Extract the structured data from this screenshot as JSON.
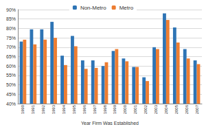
{
  "chart_data": {
    "type": "bar",
    "x_label": "Year Firm Was Established",
    "categories": [
      "1990",
      "1991",
      "1992",
      "1993",
      "1994",
      "1995",
      "1996",
      "1997",
      "1998",
      "1999",
      "2000",
      "2001",
      "2002",
      "2003",
      "2004",
      "2005",
      "2006",
      "2007"
    ],
    "series": [
      {
        "name": "Non-Metro",
        "color": "#2e74b5",
        "values": [
          73,
          79.5,
          79.5,
          83.5,
          65.5,
          76,
          63,
          63,
          60,
          68,
          64,
          59.5,
          54,
          70,
          88,
          80.5,
          69,
          63
        ]
      },
      {
        "name": "Metro",
        "color": "#ed7d31",
        "values": [
          74,
          71.5,
          74,
          75,
          60.5,
          70.5,
          58.5,
          59,
          62,
          69,
          62.5,
          59.5,
          52,
          69,
          84.5,
          72.5,
          64,
          61
        ]
      }
    ],
    "ylim": [
      40,
      90
    ],
    "yticks": [
      {
        "value": 40,
        "label": "40%"
      },
      {
        "value": 45,
        "label": "45%"
      },
      {
        "value": 50,
        "label": "50%"
      },
      {
        "value": 55,
        "label": "55%"
      },
      {
        "value": 60,
        "label": "60%"
      },
      {
        "value": 65,
        "label": "65%"
      },
      {
        "value": 70,
        "label": "70%"
      },
      {
        "value": 75,
        "label": "75%"
      },
      {
        "value": 80,
        "label": "80%"
      },
      {
        "value": 85,
        "label": "85%"
      },
      {
        "value": 90,
        "label": "90%"
      }
    ],
    "grid": true,
    "legend": "top"
  }
}
